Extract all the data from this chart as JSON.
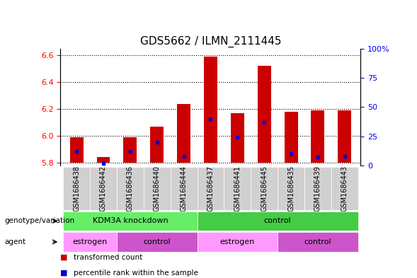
{
  "title": "GDS5662 / ILMN_2111445",
  "samples": [
    "GSM1686438",
    "GSM1686442",
    "GSM1686436",
    "GSM1686440",
    "GSM1686444",
    "GSM1686437",
    "GSM1686441",
    "GSM1686445",
    "GSM1686435",
    "GSM1686439",
    "GSM1686443"
  ],
  "transformed_counts": [
    5.99,
    5.84,
    5.99,
    6.07,
    6.24,
    6.59,
    6.17,
    6.52,
    6.18,
    6.19,
    6.19
  ],
  "percentile_ranks": [
    12,
    2,
    12,
    20,
    8,
    40,
    24,
    37,
    10,
    7,
    8
  ],
  "bar_bottom": 5.8,
  "ylim_left": [
    5.78,
    6.65
  ],
  "ylim_right": [
    0,
    100
  ],
  "yticks_left": [
    5.8,
    6.0,
    6.2,
    6.4,
    6.6
  ],
  "yticks_right": [
    0,
    25,
    50,
    75,
    100
  ],
  "bar_color": "#cc0000",
  "percentile_color": "#0000cc",
  "sample_bg_color": "#d0d0d0",
  "genotype_groups": [
    {
      "label": "KDM3A knockdown",
      "start": 0,
      "end": 5,
      "color": "#66ee66"
    },
    {
      "label": "control",
      "start": 5,
      "end": 11,
      "color": "#44cc44"
    }
  ],
  "agent_groups": [
    {
      "label": "estrogen",
      "start": 0,
      "end": 2,
      "color": "#ff99ff"
    },
    {
      "label": "control",
      "start": 2,
      "end": 5,
      "color": "#cc55cc"
    },
    {
      "label": "estrogen",
      "start": 5,
      "end": 8,
      "color": "#ff99ff"
    },
    {
      "label": "control",
      "start": 8,
      "end": 11,
      "color": "#cc55cc"
    }
  ],
  "legend_items": [
    {
      "label": "transformed count",
      "color": "#cc0000"
    },
    {
      "label": "percentile rank within the sample",
      "color": "#0000cc"
    }
  ],
  "title_fontsize": 11,
  "tick_fontsize": 8,
  "label_fontsize": 8,
  "sample_label_fontsize": 7
}
